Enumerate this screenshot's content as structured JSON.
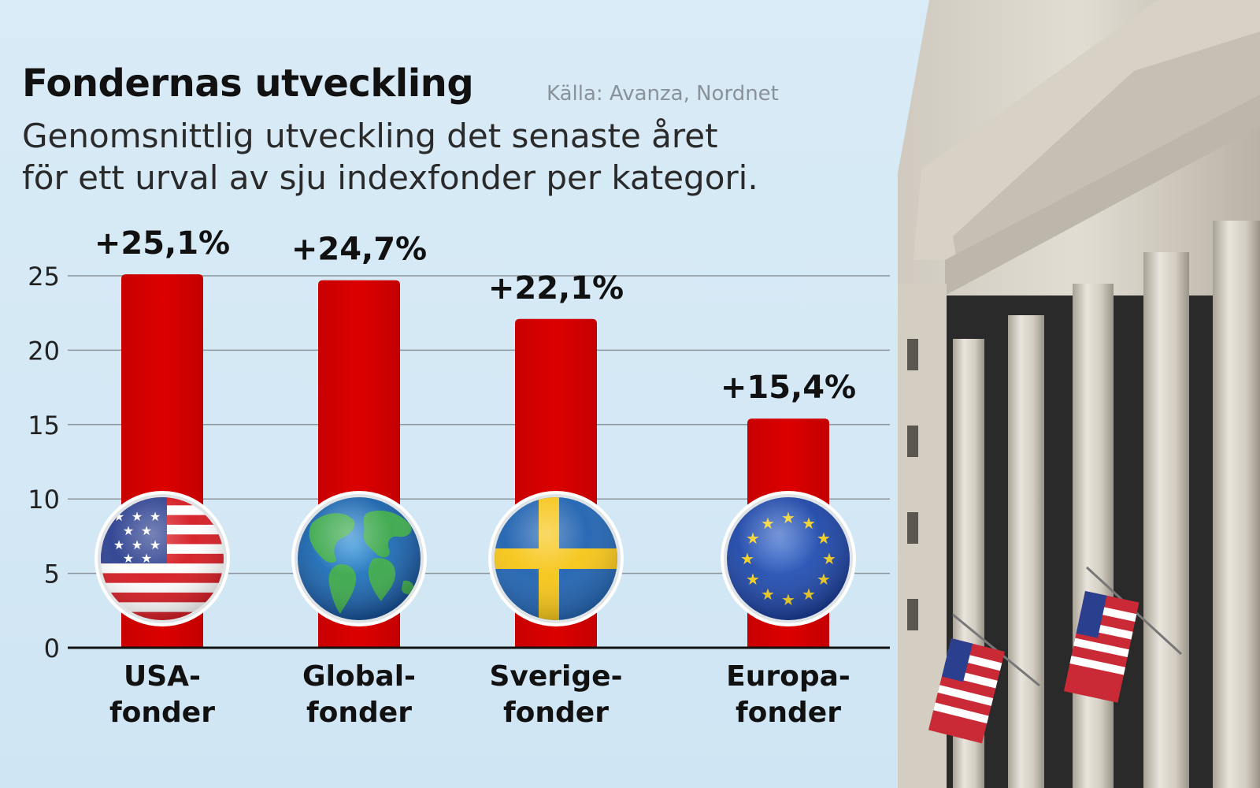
{
  "header": {
    "title": "Fondernas utveckling",
    "source": "Källa: Avanza, Nordnet",
    "subtitle_line1": "Genomsnittlig utveckling det senaste året",
    "subtitle_line2": "för ett urval av sju indexfonder per kategori."
  },
  "colors": {
    "bar": "#d40000",
    "grid": "#8c959c",
    "axis": "#111111",
    "background": "#d6eaf6"
  },
  "chart_data": {
    "type": "bar",
    "categories": [
      "USA-fonder",
      "Global-fonder",
      "Sverige-fonder",
      "Europa-fonder"
    ],
    "category_label_lines": [
      [
        "USA-",
        "fonder"
      ],
      [
        "Global-",
        "fonder"
      ],
      [
        "Sverige-",
        "fonder"
      ],
      [
        "Europa-",
        "fonder"
      ]
    ],
    "values": [
      25.1,
      24.7,
      22.1,
      15.4
    ],
    "data_labels": [
      "+25,1%",
      "+24,7%",
      "+22,1%",
      "+15,4%"
    ],
    "category_icons": [
      "usa-flag-icon",
      "globe-icon",
      "sweden-flag-icon",
      "eu-flag-icon"
    ],
    "yticks": [
      0,
      5,
      10,
      15,
      20,
      25
    ],
    "ylim": [
      0,
      25
    ],
    "grid": true
  }
}
